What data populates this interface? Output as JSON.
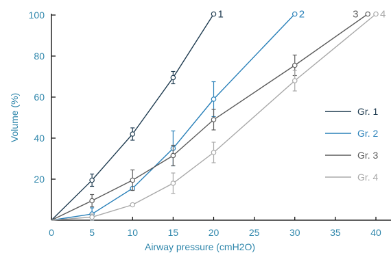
{
  "chart_data": {
    "type": "line",
    "xlabel": "Airway pressure (cmH2O)",
    "ylabel": "Volume (%)",
    "xlim": [
      0,
      40
    ],
    "ylim": [
      0,
      100
    ],
    "xticks": [
      0,
      5,
      10,
      15,
      20,
      25,
      30,
      35,
      40
    ],
    "yticks": [
      20,
      40,
      60,
      80,
      100
    ],
    "legend_position": "right",
    "grid": false,
    "series": [
      {
        "name": "Gr. 1",
        "end_label": "1",
        "color": "#1d3a4f",
        "points": [
          {
            "x": 0,
            "y": 0
          },
          {
            "x": 5,
            "y": 19.5,
            "err": 3
          },
          {
            "x": 10,
            "y": 42,
            "err": 3
          },
          {
            "x": 15,
            "y": 69.5,
            "err": 3
          },
          {
            "x": 20,
            "y": 100.5
          }
        ]
      },
      {
        "name": "Gr. 2",
        "end_label": "2",
        "color": "#2980b9",
        "points": [
          {
            "x": 0,
            "y": 0
          },
          {
            "x": 5,
            "y": 3,
            "err": 3
          },
          {
            "x": 10,
            "y": 15.5
          },
          {
            "x": 15,
            "y": 35,
            "err": 8.5
          },
          {
            "x": 20,
            "y": 59,
            "err": 8.5
          },
          {
            "x": 30,
            "y": 100.5
          }
        ]
      },
      {
        "name": "Gr. 3",
        "end_label": "3",
        "color": "#5b5b5b",
        "points": [
          {
            "x": 0,
            "y": 0
          },
          {
            "x": 5,
            "y": 9.5,
            "err": 3
          },
          {
            "x": 10,
            "y": 19.5,
            "err": 5
          },
          {
            "x": 15,
            "y": 31.5,
            "err": 5
          },
          {
            "x": 20,
            "y": 49,
            "err": 5
          },
          {
            "x": 30,
            "y": 75.5,
            "err": 5
          },
          {
            "x": 39,
            "y": 100.5
          }
        ]
      },
      {
        "name": "Gr. 4",
        "end_label": "4",
        "color": "#a8a8a8",
        "points": [
          {
            "x": 0,
            "y": 0
          },
          {
            "x": 5,
            "y": 1.5,
            "err": 1.5
          },
          {
            "x": 10,
            "y": 7.5
          },
          {
            "x": 15,
            "y": 18,
            "err": 5
          },
          {
            "x": 20,
            "y": 33,
            "err": 5
          },
          {
            "x": 30,
            "y": 68,
            "err": 5
          },
          {
            "x": 40,
            "y": 100.5
          }
        ]
      }
    ]
  }
}
